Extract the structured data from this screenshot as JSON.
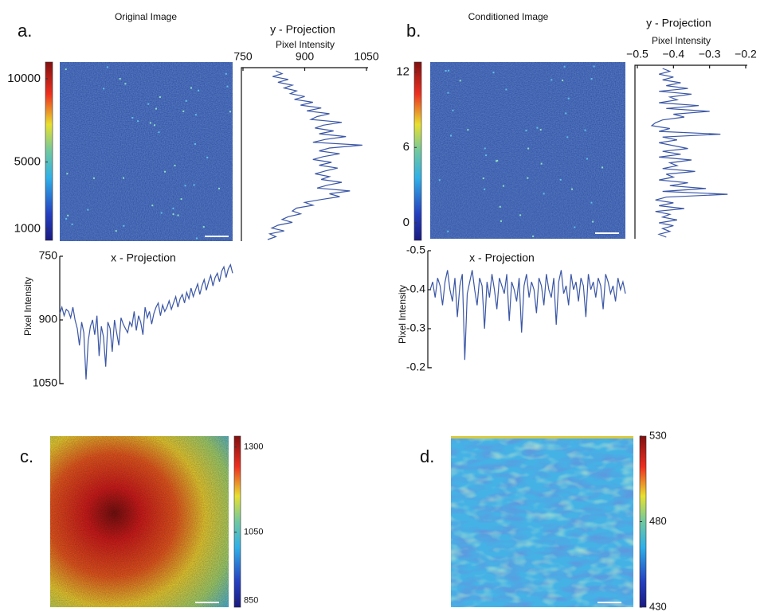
{
  "chart_data": [
    {
      "type": "image",
      "label": "a.",
      "title": "Original Image",
      "colormap": "jet",
      "clim": [
        300,
        11000
      ],
      "cticks": [
        1000,
        5000,
        10000
      ]
    },
    {
      "type": "projection",
      "orientation": "vertical",
      "title": "y - Projection",
      "xlabel": "Pixel Intensity",
      "xlim": [
        750,
        1050
      ],
      "xticks": [
        750,
        900,
        1050
      ],
      "color": "#3a56a6",
      "values": [
        830,
        845,
        822,
        860,
        835,
        870,
        850,
        880,
        865,
        900,
        875,
        920,
        890,
        940,
        905,
        960,
        930,
        915,
        990,
        945,
        925,
        970,
        935,
        1000,
        950,
        920,
        1040,
        960,
        935,
        985,
        945,
        920,
        965,
        935,
        980,
        950,
        925,
        960,
        940,
        990,
        955,
        930,
        1010,
        960,
        985,
        940,
        900,
        920,
        880,
        870,
        890,
        860,
        845,
        870,
        835,
        820,
        850,
        815,
        830,
        810
      ]
    },
    {
      "type": "projection",
      "orientation": "horizontal",
      "title": "x - Projection",
      "ylabel": "Pixel Intensity",
      "ylim": [
        750,
        1050
      ],
      "y_inverted": true,
      "yticks": [
        750,
        900,
        1050
      ],
      "color": "#3a56a6",
      "values": [
        885,
        870,
        890,
        875,
        880,
        895,
        870,
        900,
        920,
        960,
        905,
        930,
        1040,
        950,
        915,
        900,
        935,
        890,
        985,
        915,
        940,
        1010,
        905,
        920,
        975,
        900,
        930,
        960,
        895,
        910,
        920,
        930,
        905,
        915,
        880,
        925,
        890,
        905,
        935,
        870,
        895,
        880,
        910,
        885,
        870,
        860,
        890,
        865,
        880,
        870,
        855,
        875,
        860,
        845,
        870,
        850,
        840,
        860,
        835,
        850,
        825,
        845,
        830,
        815,
        840,
        820,
        805,
        830,
        810,
        795,
        820,
        800,
        790,
        810,
        785,
        775,
        800,
        780,
        770,
        790
      ]
    },
    {
      "type": "image",
      "label": "b.",
      "title": "Conditioned Image",
      "colormap": "jet",
      "clim": [
        -1.4,
        12.8
      ],
      "cticks": [
        0,
        6,
        12
      ]
    },
    {
      "type": "projection",
      "orientation": "vertical",
      "title": "y - Projection",
      "xlabel": "Pixel Intensity",
      "xlim": [
        -0.5,
        -0.2
      ],
      "xticks": [
        {
          "value": -0.5,
          "label": "−0.5"
        },
        {
          "value": -0.4,
          "label": "−0.4"
        },
        {
          "value": -0.3,
          "label": "−0.3"
        },
        {
          "value": -0.2,
          "label": "−0.2"
        }
      ],
      "color": "#3a56a6",
      "values": [
        -0.43,
        -0.41,
        -0.44,
        -0.4,
        -0.43,
        -0.38,
        -0.42,
        -0.36,
        -0.44,
        -0.35,
        -0.41,
        -0.39,
        -0.44,
        -0.33,
        -0.42,
        -0.3,
        -0.4,
        -0.37,
        -0.43,
        -0.45,
        -0.46,
        -0.41,
        -0.44,
        -0.27,
        -0.43,
        -0.39,
        -0.44,
        -0.4,
        -0.36,
        -0.43,
        -0.38,
        -0.44,
        -0.35,
        -0.41,
        -0.39,
        -0.43,
        -0.34,
        -0.42,
        -0.4,
        -0.44,
        -0.36,
        -0.41,
        -0.31,
        -0.43,
        -0.25,
        -0.42,
        -0.45,
        -0.4,
        -0.44,
        -0.37,
        -0.45,
        -0.41,
        -0.43,
        -0.39,
        -0.44,
        -0.4,
        -0.43,
        -0.41,
        -0.44,
        -0.42
      ]
    },
    {
      "type": "projection",
      "orientation": "horizontal",
      "title": "x - Projection",
      "ylabel": "Pixel Intensity",
      "ylim": [
        -0.5,
        -0.2
      ],
      "y_inverted": true,
      "yticks": [
        -0.5,
        -0.4,
        -0.3,
        -0.2
      ],
      "color": "#3a56a6",
      "values": [
        -0.4,
        -0.42,
        -0.38,
        -0.43,
        -0.41,
        -0.36,
        -0.42,
        -0.45,
        -0.4,
        -0.37,
        -0.43,
        -0.33,
        -0.41,
        -0.44,
        -0.22,
        -0.39,
        -0.42,
        -0.45,
        -0.4,
        -0.36,
        -0.43,
        -0.41,
        -0.3,
        -0.42,
        -0.38,
        -0.44,
        -0.4,
        -0.35,
        -0.43,
        -0.41,
        -0.39,
        -0.44,
        -0.32,
        -0.42,
        -0.4,
        -0.37,
        -0.43,
        -0.29,
        -0.41,
        -0.44,
        -0.38,
        -0.42,
        -0.4,
        -0.34,
        -0.43,
        -0.41,
        -0.36,
        -0.44,
        -0.4,
        -0.38,
        -0.43,
        -0.31,
        -0.42,
        -0.45,
        -0.39,
        -0.41,
        -0.36,
        -0.44,
        -0.4,
        -0.42,
        -0.37,
        -0.43,
        -0.41,
        -0.33,
        -0.44,
        -0.4,
        -0.42,
        -0.38,
        -0.43,
        -0.41,
        -0.35,
        -0.44,
        -0.42,
        -0.39,
        -0.41,
        -0.37,
        -0.43,
        -0.4,
        -0.42,
        -0.39
      ]
    },
    {
      "type": "image",
      "label": "c.",
      "colormap": "jet",
      "clim": [
        830,
        1332
      ],
      "cticks": [
        850,
        1050,
        1300
      ]
    },
    {
      "type": "image",
      "label": "d.",
      "colormap": "jet",
      "clim": [
        430,
        530
      ],
      "cticks": [
        430,
        480,
        530
      ]
    }
  ]
}
